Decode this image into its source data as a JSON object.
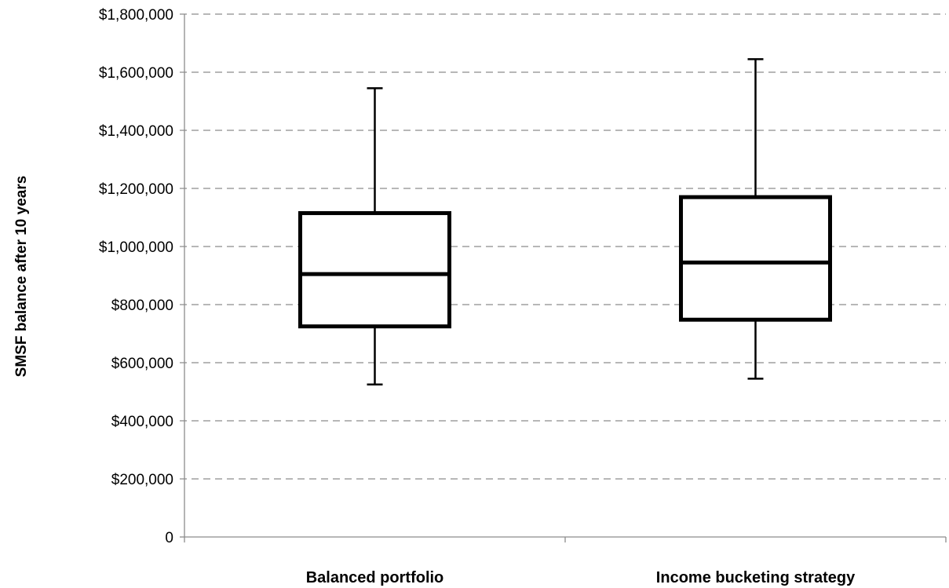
{
  "chart_data": {
    "type": "boxplot",
    "title": "",
    "xlabel": "",
    "ylabel": "SMSF balance after 10 years",
    "ylim": [
      0,
      1800000
    ],
    "y_ticks": [
      0,
      200000,
      400000,
      600000,
      800000,
      1000000,
      1200000,
      1400000,
      1600000,
      1800000
    ],
    "y_tick_labels": [
      "0",
      "$200,000",
      "$400,000",
      "$600,000",
      "$800,000",
      "$1,000,000",
      "$1,200,000",
      "$1,400,000",
      "$1,600,000",
      "$1,800,000"
    ],
    "grid": "horizontal-dashed",
    "legend": "none",
    "categories": [
      "Balanced portfolio",
      "Income bucketing strategy"
    ],
    "boxes": [
      {
        "category": "Balanced portfolio",
        "min": 525000,
        "q1": 725000,
        "median": 905000,
        "q3": 1115000,
        "max": 1545000
      },
      {
        "category": "Income bucketing strategy",
        "min": 545000,
        "q1": 748000,
        "median": 945000,
        "q3": 1170000,
        "max": 1645000
      }
    ],
    "colors": {
      "box_stroke": "#000000",
      "grid": "#8c8c8c",
      "axis": "#8c8c8c"
    }
  }
}
